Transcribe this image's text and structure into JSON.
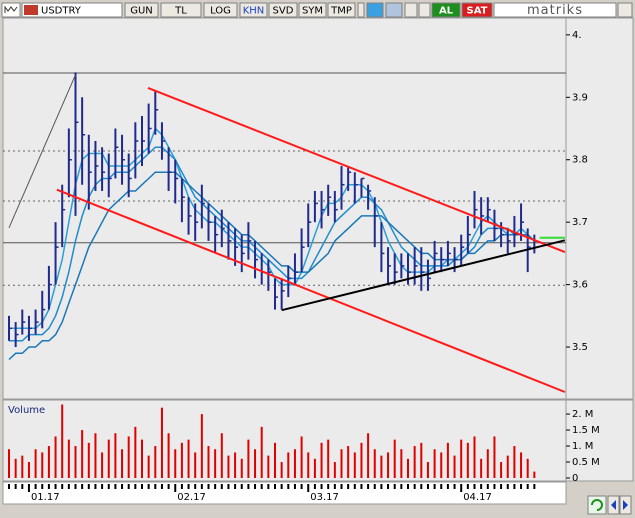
{
  "toolbar": {
    "symbol": "USDTRY",
    "buttons": [
      "GUN",
      "TL",
      "LOG",
      "KHN",
      "SVD",
      "SYM",
      "TMP"
    ],
    "buy": "AL",
    "sell": "SAT",
    "brand": "matriks"
  },
  "chart_data": {
    "type": "ohlc",
    "categories": [
      null,
      null,
      null,
      "01.17",
      null,
      null,
      null,
      null,
      null,
      null,
      null,
      null,
      null,
      null,
      null,
      null,
      null,
      null,
      null,
      null,
      null,
      null,
      null,
      null,
      null,
      "02.17",
      null,
      null,
      null,
      null,
      null,
      null,
      null,
      null,
      null,
      null,
      null,
      null,
      null,
      null,
      null,
      null,
      null,
      null,
      null,
      "03.17",
      null,
      null,
      null,
      null,
      null,
      null,
      null,
      null,
      null,
      null,
      null,
      null,
      null,
      null,
      null,
      null,
      null,
      null,
      null,
      null,
      null,
      null,
      "04.17",
      null,
      null,
      null,
      null,
      null,
      null,
      null,
      null,
      null,
      null,
      null
    ],
    "color": "#1f2a8c",
    "high": [
      3.55,
      3.54,
      3.56,
      3.55,
      3.56,
      3.59,
      3.63,
      3.7,
      3.76,
      3.85,
      3.94,
      3.9,
      3.84,
      3.83,
      3.82,
      3.81,
      3.85,
      3.84,
      3.81,
      3.86,
      3.87,
      3.89,
      3.91,
      3.86,
      3.82,
      3.8,
      3.77,
      3.74,
      3.73,
      3.76,
      3.73,
      3.71,
      3.72,
      3.7,
      3.69,
      3.68,
      3.7,
      3.67,
      3.65,
      3.64,
      3.61,
      3.61,
      3.63,
      3.65,
      3.69,
      3.73,
      3.75,
      3.75,
      3.76,
      3.75,
      3.79,
      3.79,
      3.78,
      3.77,
      3.76,
      3.74,
      3.7,
      3.66,
      3.65,
      3.65,
      3.65,
      3.66,
      3.66,
      3.64,
      3.67,
      3.66,
      3.67,
      3.66,
      3.68,
      3.71,
      3.75,
      3.74,
      3.74,
      3.72,
      3.7,
      3.69,
      3.71,
      3.73,
      3.69,
      3.68
    ],
    "low": [
      3.51,
      3.5,
      3.52,
      3.51,
      3.52,
      3.53,
      3.56,
      3.6,
      3.66,
      3.74,
      3.71,
      3.76,
      3.72,
      3.75,
      3.75,
      3.74,
      3.77,
      3.76,
      3.74,
      3.77,
      3.79,
      3.81,
      3.84,
      3.8,
      3.75,
      3.73,
      3.7,
      3.68,
      3.67,
      3.69,
      3.67,
      3.65,
      3.66,
      3.64,
      3.63,
      3.62,
      3.64,
      3.61,
      3.6,
      3.59,
      3.56,
      3.56,
      3.58,
      3.6,
      3.62,
      3.66,
      3.7,
      3.69,
      3.71,
      3.7,
      3.72,
      3.75,
      3.73,
      3.74,
      3.72,
      3.66,
      3.62,
      3.6,
      3.6,
      3.61,
      3.6,
      3.6,
      3.59,
      3.59,
      3.62,
      3.62,
      3.63,
      3.62,
      3.63,
      3.65,
      3.69,
      3.68,
      3.7,
      3.67,
      3.66,
      3.65,
      3.66,
      3.67,
      3.62,
      3.65
    ],
    "close": [
      3.53,
      3.52,
      3.54,
      3.53,
      3.54,
      3.56,
      3.6,
      3.66,
      3.72,
      3.8,
      3.86,
      3.84,
      3.78,
      3.79,
      3.78,
      3.77,
      3.82,
      3.8,
      3.77,
      3.83,
      3.83,
      3.85,
      3.88,
      3.83,
      3.78,
      3.77,
      3.74,
      3.71,
      3.7,
      3.73,
      3.7,
      3.68,
      3.69,
      3.67,
      3.66,
      3.65,
      3.67,
      3.64,
      3.62,
      3.62,
      3.58,
      3.59,
      3.61,
      3.62,
      3.66,
      3.7,
      3.73,
      3.72,
      3.74,
      3.72,
      3.76,
      3.78,
      3.76,
      3.77,
      3.75,
      3.71,
      3.65,
      3.63,
      3.62,
      3.63,
      3.62,
      3.63,
      3.62,
      3.61,
      3.65,
      3.64,
      3.65,
      3.64,
      3.66,
      3.68,
      3.72,
      3.71,
      3.72,
      3.69,
      3.68,
      3.67,
      3.68,
      3.7,
      3.66,
      3.67
    ],
    "averages": [
      {
        "color": "#2a9fd8",
        "values": [
          3.53,
          3.53,
          3.53,
          3.53,
          3.53,
          3.54,
          3.56,
          3.6,
          3.64,
          3.7,
          3.76,
          3.8,
          3.81,
          3.81,
          3.81,
          3.79,
          3.79,
          3.79,
          3.79,
          3.8,
          3.81,
          3.82,
          3.85,
          3.84,
          3.82,
          3.8,
          3.77,
          3.74,
          3.72,
          3.71,
          3.7,
          3.7,
          3.69,
          3.68,
          3.67,
          3.66,
          3.66,
          3.65,
          3.64,
          3.63,
          3.61,
          3.6,
          3.6,
          3.6,
          3.62,
          3.65,
          3.68,
          3.71,
          3.73,
          3.73,
          3.74,
          3.76,
          3.76,
          3.76,
          3.75,
          3.73,
          3.7,
          3.67,
          3.65,
          3.63,
          3.62,
          3.62,
          3.62,
          3.62,
          3.63,
          3.63,
          3.64,
          3.64,
          3.65,
          3.66,
          3.68,
          3.7,
          3.71,
          3.7,
          3.69,
          3.68,
          3.68,
          3.69,
          3.68,
          3.67
        ]
      },
      {
        "color": "#1f8ccc",
        "values": [
          3.51,
          3.51,
          3.51,
          3.52,
          3.52,
          3.52,
          3.53,
          3.55,
          3.58,
          3.62,
          3.67,
          3.71,
          3.74,
          3.76,
          3.77,
          3.77,
          3.78,
          3.78,
          3.78,
          3.79,
          3.8,
          3.81,
          3.82,
          3.82,
          3.81,
          3.8,
          3.78,
          3.76,
          3.74,
          3.73,
          3.72,
          3.71,
          3.7,
          3.69,
          3.68,
          3.67,
          3.67,
          3.66,
          3.65,
          3.64,
          3.63,
          3.62,
          3.61,
          3.61,
          3.61,
          3.62,
          3.64,
          3.66,
          3.68,
          3.7,
          3.71,
          3.72,
          3.73,
          3.74,
          3.74,
          3.73,
          3.72,
          3.7,
          3.68,
          3.66,
          3.65,
          3.64,
          3.63,
          3.63,
          3.63,
          3.63,
          3.63,
          3.64,
          3.64,
          3.65,
          3.66,
          3.68,
          3.69,
          3.69,
          3.69,
          3.69,
          3.68,
          3.68,
          3.68,
          3.67
        ]
      },
      {
        "color": "#1a78b8",
        "values": [
          3.48,
          3.49,
          3.49,
          3.5,
          3.5,
          3.51,
          3.51,
          3.52,
          3.54,
          3.57,
          3.6,
          3.63,
          3.66,
          3.68,
          3.7,
          3.72,
          3.73,
          3.74,
          3.75,
          3.75,
          3.76,
          3.77,
          3.78,
          3.78,
          3.78,
          3.78,
          3.77,
          3.76,
          3.75,
          3.74,
          3.73,
          3.72,
          3.71,
          3.7,
          3.69,
          3.68,
          3.68,
          3.67,
          3.66,
          3.65,
          3.64,
          3.63,
          3.63,
          3.62,
          3.62,
          3.62,
          3.63,
          3.64,
          3.65,
          3.67,
          3.68,
          3.69,
          3.7,
          3.71,
          3.71,
          3.71,
          3.71,
          3.7,
          3.69,
          3.68,
          3.67,
          3.66,
          3.65,
          3.65,
          3.64,
          3.64,
          3.64,
          3.64,
          3.64,
          3.65,
          3.65,
          3.66,
          3.67,
          3.67,
          3.68,
          3.68,
          3.68,
          3.68,
          3.68,
          3.67
        ]
      }
    ],
    "levels": [
      {
        "value": 3.939,
        "style": "solid"
      },
      {
        "value": 3.667,
        "style": "solid"
      },
      {
        "value": 3.814,
        "style": "dotted"
      },
      {
        "value": 3.734,
        "style": "dotted"
      },
      {
        "value": 3.599,
        "style": "dotted"
      }
    ],
    "trendlines": [
      {
        "color": "#ff1a1a",
        "x": [
          20.9,
          83.6
        ],
        "y": [
          3.915,
          3.652
        ]
      },
      {
        "color": "#ff1a1a",
        "x": [
          7.2,
          83.6
        ],
        "y": [
          3.752,
          3.428
        ]
      },
      {
        "color": "#000000",
        "x": [
          41,
          83.6
        ],
        "y": [
          3.559,
          3.671
        ]
      },
      {
        "color": "#33dd33",
        "x": [
          79.8,
          83.6
        ],
        "y": [
          3.675,
          3.675
        ]
      },
      {
        "color": "#555555",
        "x": [
          0,
          10
        ],
        "y": [
          3.691,
          3.936
        ]
      }
    ],
    "ylim": [
      3.42,
      4.027
    ],
    "yticks": [
      {
        "value": 4,
        "label": "4."
      },
      3.9,
      3.8,
      3.7,
      3.6,
      3.5
    ],
    "volume": {
      "title": "Volume",
      "color": "#e00000",
      "values": [
        0.9,
        0.6,
        0.7,
        0.5,
        0.9,
        0.8,
        1.0,
        1.3,
        2.3,
        1.2,
        1.0,
        1.5,
        1.1,
        1.4,
        0.8,
        1.2,
        1.4,
        0.9,
        1.3,
        1.6,
        1.2,
        0.7,
        1.0,
        2.2,
        1.4,
        0.9,
        1.1,
        1.2,
        0.8,
        2.0,
        1.0,
        0.9,
        1.4,
        0.7,
        0.8,
        0.6,
        1.2,
        0.9,
        1.6,
        0.7,
        1.1,
        0.5,
        0.8,
        0.9,
        1.3,
        0.8,
        0.6,
        1.1,
        1.2,
        0.5,
        0.9,
        1.0,
        0.8,
        1.1,
        1.4,
        0.9,
        0.7,
        0.8,
        1.2,
        0.9,
        0.6,
        1.0,
        1.1,
        0.5,
        0.9,
        0.8,
        1.1,
        0.7,
        1.2,
        1.1,
        1.3,
        0.6,
        0.9,
        1.3,
        0.5,
        0.7,
        1.0,
        0.8,
        0.6,
        0.2
      ],
      "ylim": [
        0,
        2.44
      ],
      "yticks": [
        {
          "value": 2,
          "label": "2. M"
        },
        {
          "value": 1.5,
          "label": "1.5 M"
        },
        {
          "value": 1,
          "label": "1. M"
        },
        {
          "value": 0.5,
          "label": "0.5 M"
        },
        0
      ]
    }
  }
}
